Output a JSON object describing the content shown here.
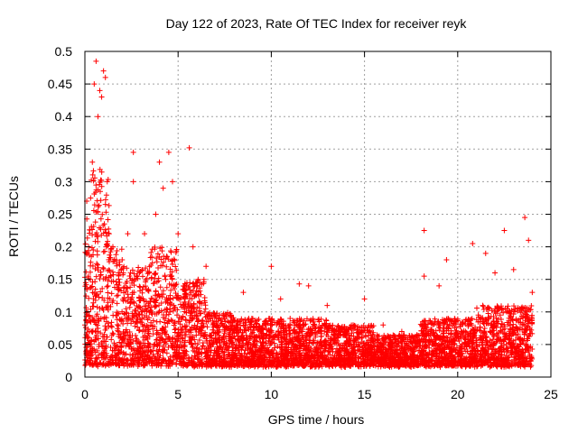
{
  "chart_data": {
    "type": "scatter",
    "title": "Day 122 of 2023, Rate Of TEC Index for receiver reyk",
    "xlabel": "GPS time / hours",
    "ylabel": "ROTI / TECUs",
    "xlim": [
      0,
      25
    ],
    "ylim": [
      0,
      0.5
    ],
    "x_ticks": [
      0,
      5,
      10,
      15,
      20,
      25
    ],
    "x_tick_labels": [
      "0",
      "5",
      "10",
      "15",
      "20",
      "25"
    ],
    "y_ticks": [
      0,
      0.05,
      0.1,
      0.15,
      0.2,
      0.25,
      0.3,
      0.35,
      0.4,
      0.45,
      0.5
    ],
    "y_tick_labels": [
      "0",
      "0.05",
      "0.1",
      "0.15",
      "0.2",
      "0.25",
      "0.3",
      "0.35",
      "0.4",
      "0.45",
      "0.5"
    ],
    "grid": true,
    "marker": "+",
    "color": "#ff0000",
    "series": [
      {
        "name": "ROTI",
        "description": "Dense cloud of ROTI samples; notable values read from the plot",
        "points": [
          [
            0.0,
            0.08
          ],
          [
            0.1,
            0.27
          ],
          [
            0.2,
            0.2
          ],
          [
            0.3,
            0.15
          ],
          [
            0.4,
            0.33
          ],
          [
            0.5,
            0.45
          ],
          [
            0.6,
            0.485
          ],
          [
            0.7,
            0.4
          ],
          [
            0.8,
            0.44
          ],
          [
            0.9,
            0.43
          ],
          [
            1.0,
            0.47
          ],
          [
            1.1,
            0.46
          ],
          [
            1.2,
            0.3
          ],
          [
            1.3,
            0.22
          ],
          [
            1.5,
            0.2
          ],
          [
            1.8,
            0.16
          ],
          [
            2.0,
            0.18
          ],
          [
            2.3,
            0.22
          ],
          [
            2.6,
            0.345
          ],
          [
            2.6,
            0.3
          ],
          [
            3.2,
            0.22
          ],
          [
            3.8,
            0.25
          ],
          [
            4.0,
            0.33
          ],
          [
            4.2,
            0.29
          ],
          [
            4.5,
            0.345
          ],
          [
            4.7,
            0.3
          ],
          [
            5.0,
            0.22
          ],
          [
            5.6,
            0.352
          ],
          [
            5.8,
            0.2
          ],
          [
            6.5,
            0.17
          ],
          [
            8.5,
            0.13
          ],
          [
            10.0,
            0.17
          ],
          [
            10.5,
            0.12
          ],
          [
            11.5,
            0.143
          ],
          [
            12.0,
            0.14
          ],
          [
            13.0,
            0.11
          ],
          [
            15.0,
            0.12
          ],
          [
            16.0,
            0.08
          ],
          [
            17.0,
            0.07
          ],
          [
            18.2,
            0.225
          ],
          [
            18.2,
            0.155
          ],
          [
            19.0,
            0.14
          ],
          [
            19.4,
            0.18
          ],
          [
            20.8,
            0.205
          ],
          [
            21.5,
            0.19
          ],
          [
            22.0,
            0.16
          ],
          [
            22.5,
            0.225
          ],
          [
            23.0,
            0.165
          ],
          [
            23.6,
            0.245
          ],
          [
            23.8,
            0.21
          ],
          [
            24.0,
            0.13
          ]
        ]
      }
    ]
  }
}
